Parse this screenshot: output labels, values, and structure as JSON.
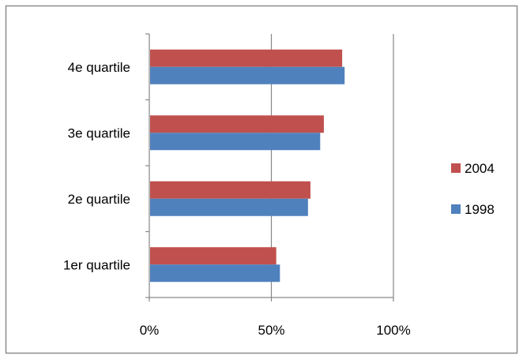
{
  "chart_data": {
    "type": "bar",
    "orientation": "horizontal",
    "categories": [
      "4e quartile",
      "3e quartile",
      "2e quartile",
      "1er quartile"
    ],
    "series": [
      {
        "name": "2004",
        "color": "#C0504D",
        "values": [
          79,
          71.5,
          66,
          52
        ]
      },
      {
        "name": "1998",
        "color": "#4F81BD",
        "values": [
          80,
          70,
          65,
          53.5
        ]
      }
    ],
    "xlim": [
      0,
      100
    ],
    "x_ticks": [
      {
        "value": 0,
        "label": "0%"
      },
      {
        "value": 50,
        "label": "50%"
      },
      {
        "value": 100,
        "label": "100%"
      }
    ],
    "grid": "vertical major gridlines",
    "legend_position": "right",
    "legend": [
      "2004",
      "1998"
    ]
  }
}
